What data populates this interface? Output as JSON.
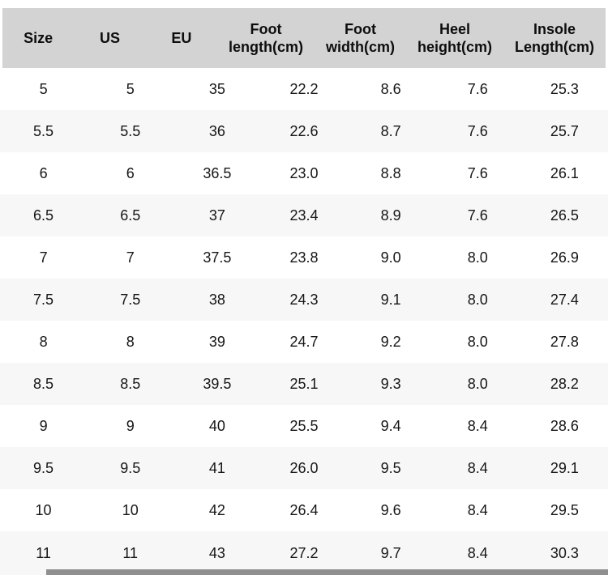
{
  "chart_data": {
    "type": "table",
    "title": "",
    "columns": [
      "Size",
      "US",
      "EU",
      "Foot length(cm)",
      "Foot width(cm)",
      "Heel height(cm)",
      "Insole Length(cm)"
    ],
    "rows": [
      [
        "5",
        "5",
        "35",
        "22.2",
        "8.6",
        "7.6",
        "25.3"
      ],
      [
        "5.5",
        "5.5",
        "36",
        "22.6",
        "8.7",
        "7.6",
        "25.7"
      ],
      [
        "6",
        "6",
        "36.5",
        "23.0",
        "8.8",
        "7.6",
        "26.1"
      ],
      [
        "6.5",
        "6.5",
        "37",
        "23.4",
        "8.9",
        "7.6",
        "26.5"
      ],
      [
        "7",
        "7",
        "37.5",
        "23.8",
        "9.0",
        "8.0",
        "26.9"
      ],
      [
        "7.5",
        "7.5",
        "38",
        "24.3",
        "9.1",
        "8.0",
        "27.4"
      ],
      [
        "8",
        "8",
        "39",
        "24.7",
        "9.2",
        "8.0",
        "27.8"
      ],
      [
        "8.5",
        "8.5",
        "39.5",
        "25.1",
        "9.3",
        "8.0",
        "28.2"
      ],
      [
        "9",
        "9",
        "40",
        "25.5",
        "9.4",
        "8.4",
        "28.6"
      ],
      [
        "9.5",
        "9.5",
        "41",
        "26.0",
        "9.5",
        "8.4",
        "29.1"
      ],
      [
        "10",
        "10",
        "42",
        "26.4",
        "9.6",
        "8.4",
        "29.5"
      ],
      [
        "11",
        "11",
        "43",
        "27.2",
        "9.7",
        "8.4",
        "30.3"
      ]
    ],
    "layout": {
      "header_row": true,
      "alternating_rows": true,
      "grid": false
    }
  },
  "colors": {
    "header_bg": "#d3d3d3",
    "row_bg": "#ffffff",
    "row_alt_bg": "#f7f7f7",
    "text": "#161616",
    "header_text": "#0d0d0d",
    "scrollbar_thumb": "#8f8f8f"
  }
}
